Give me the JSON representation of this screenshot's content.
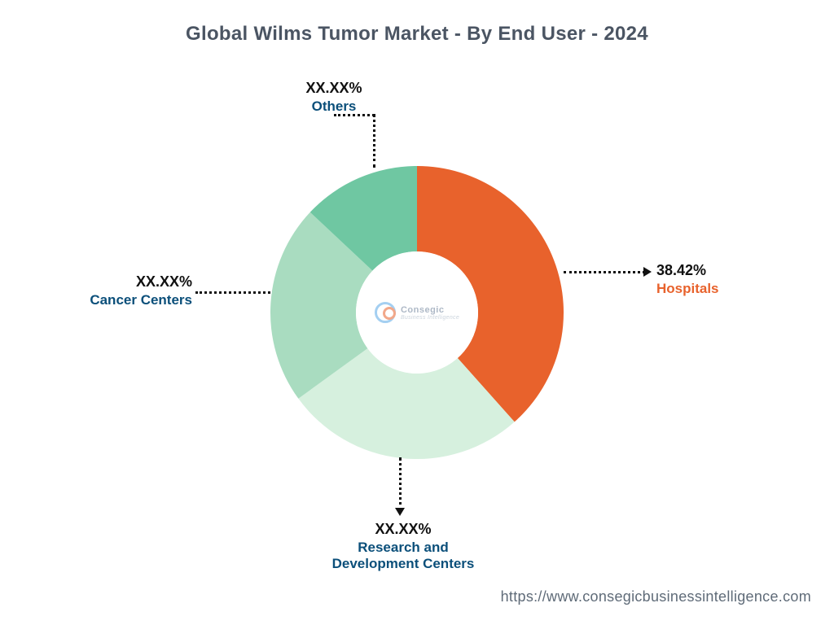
{
  "chart": {
    "type": "donut",
    "title": "Global Wilms Tumor Market - By End User - 2024",
    "title_color": "#4b5563",
    "title_fontsize": 24,
    "background_color": "#ffffff",
    "outer_radius": 180,
    "inner_radius": 75,
    "slices": [
      {
        "key": "hospitals",
        "value": 38.42,
        "pct_label": "38.42%",
        "name": "Hospitals",
        "color": "#e8622c",
        "name_color": "#e8622c"
      },
      {
        "key": "rnd",
        "value": 26.58,
        "pct_label": "XX.XX%",
        "name": "Research and Development Centers",
        "color": "#d6f0de",
        "name_color": "#0b4f7a"
      },
      {
        "key": "cancer_centers",
        "value": 22.0,
        "pct_label": "XX.XX%",
        "name": "Cancer Centers",
        "color": "#a9dcc0",
        "name_color": "#0b4f7a"
      },
      {
        "key": "others",
        "value": 13.0,
        "pct_label": "XX.XX%",
        "name": "Others",
        "color": "#6fc7a2",
        "name_color": "#0b4f7a"
      }
    ],
    "label_pct_fontsize": 18,
    "label_name_fontsize": 17,
    "leader_style": "dotted",
    "leader_color": "#111111",
    "center_logo": {
      "brand": "Consegic",
      "tagline": "Business Intelligence"
    },
    "footer_url": "https://www.consegicbusinessintelligence.com"
  }
}
